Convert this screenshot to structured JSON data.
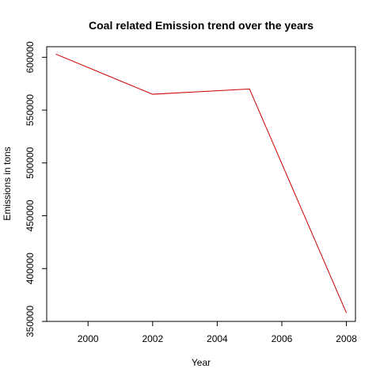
{
  "chart_data": {
    "type": "line",
    "title": "Coal related Emission trend over the years",
    "xlabel": "Year",
    "ylabel": "Emissions in tons",
    "x": [
      1999,
      2002,
      2005,
      2008
    ],
    "series": [
      {
        "values": [
          603000,
          565000,
          570000,
          358000
        ],
        "color": "#cc0000"
      }
    ],
    "xlim": [
      1998.72,
      2008.28
    ],
    "ylim": [
      350000,
      610000
    ],
    "xticks": [
      2000,
      2002,
      2004,
      2006,
      2008
    ],
    "yticks": [
      350000,
      400000,
      450000,
      500000,
      550000,
      600000
    ],
    "xtick_labels": [
      "2000",
      "2002",
      "2004",
      "2006",
      "2008"
    ],
    "ytick_labels": [
      "350000",
      "400000",
      "450000",
      "500000",
      "550000",
      "600000"
    ],
    "grid": false,
    "legend": "none"
  }
}
